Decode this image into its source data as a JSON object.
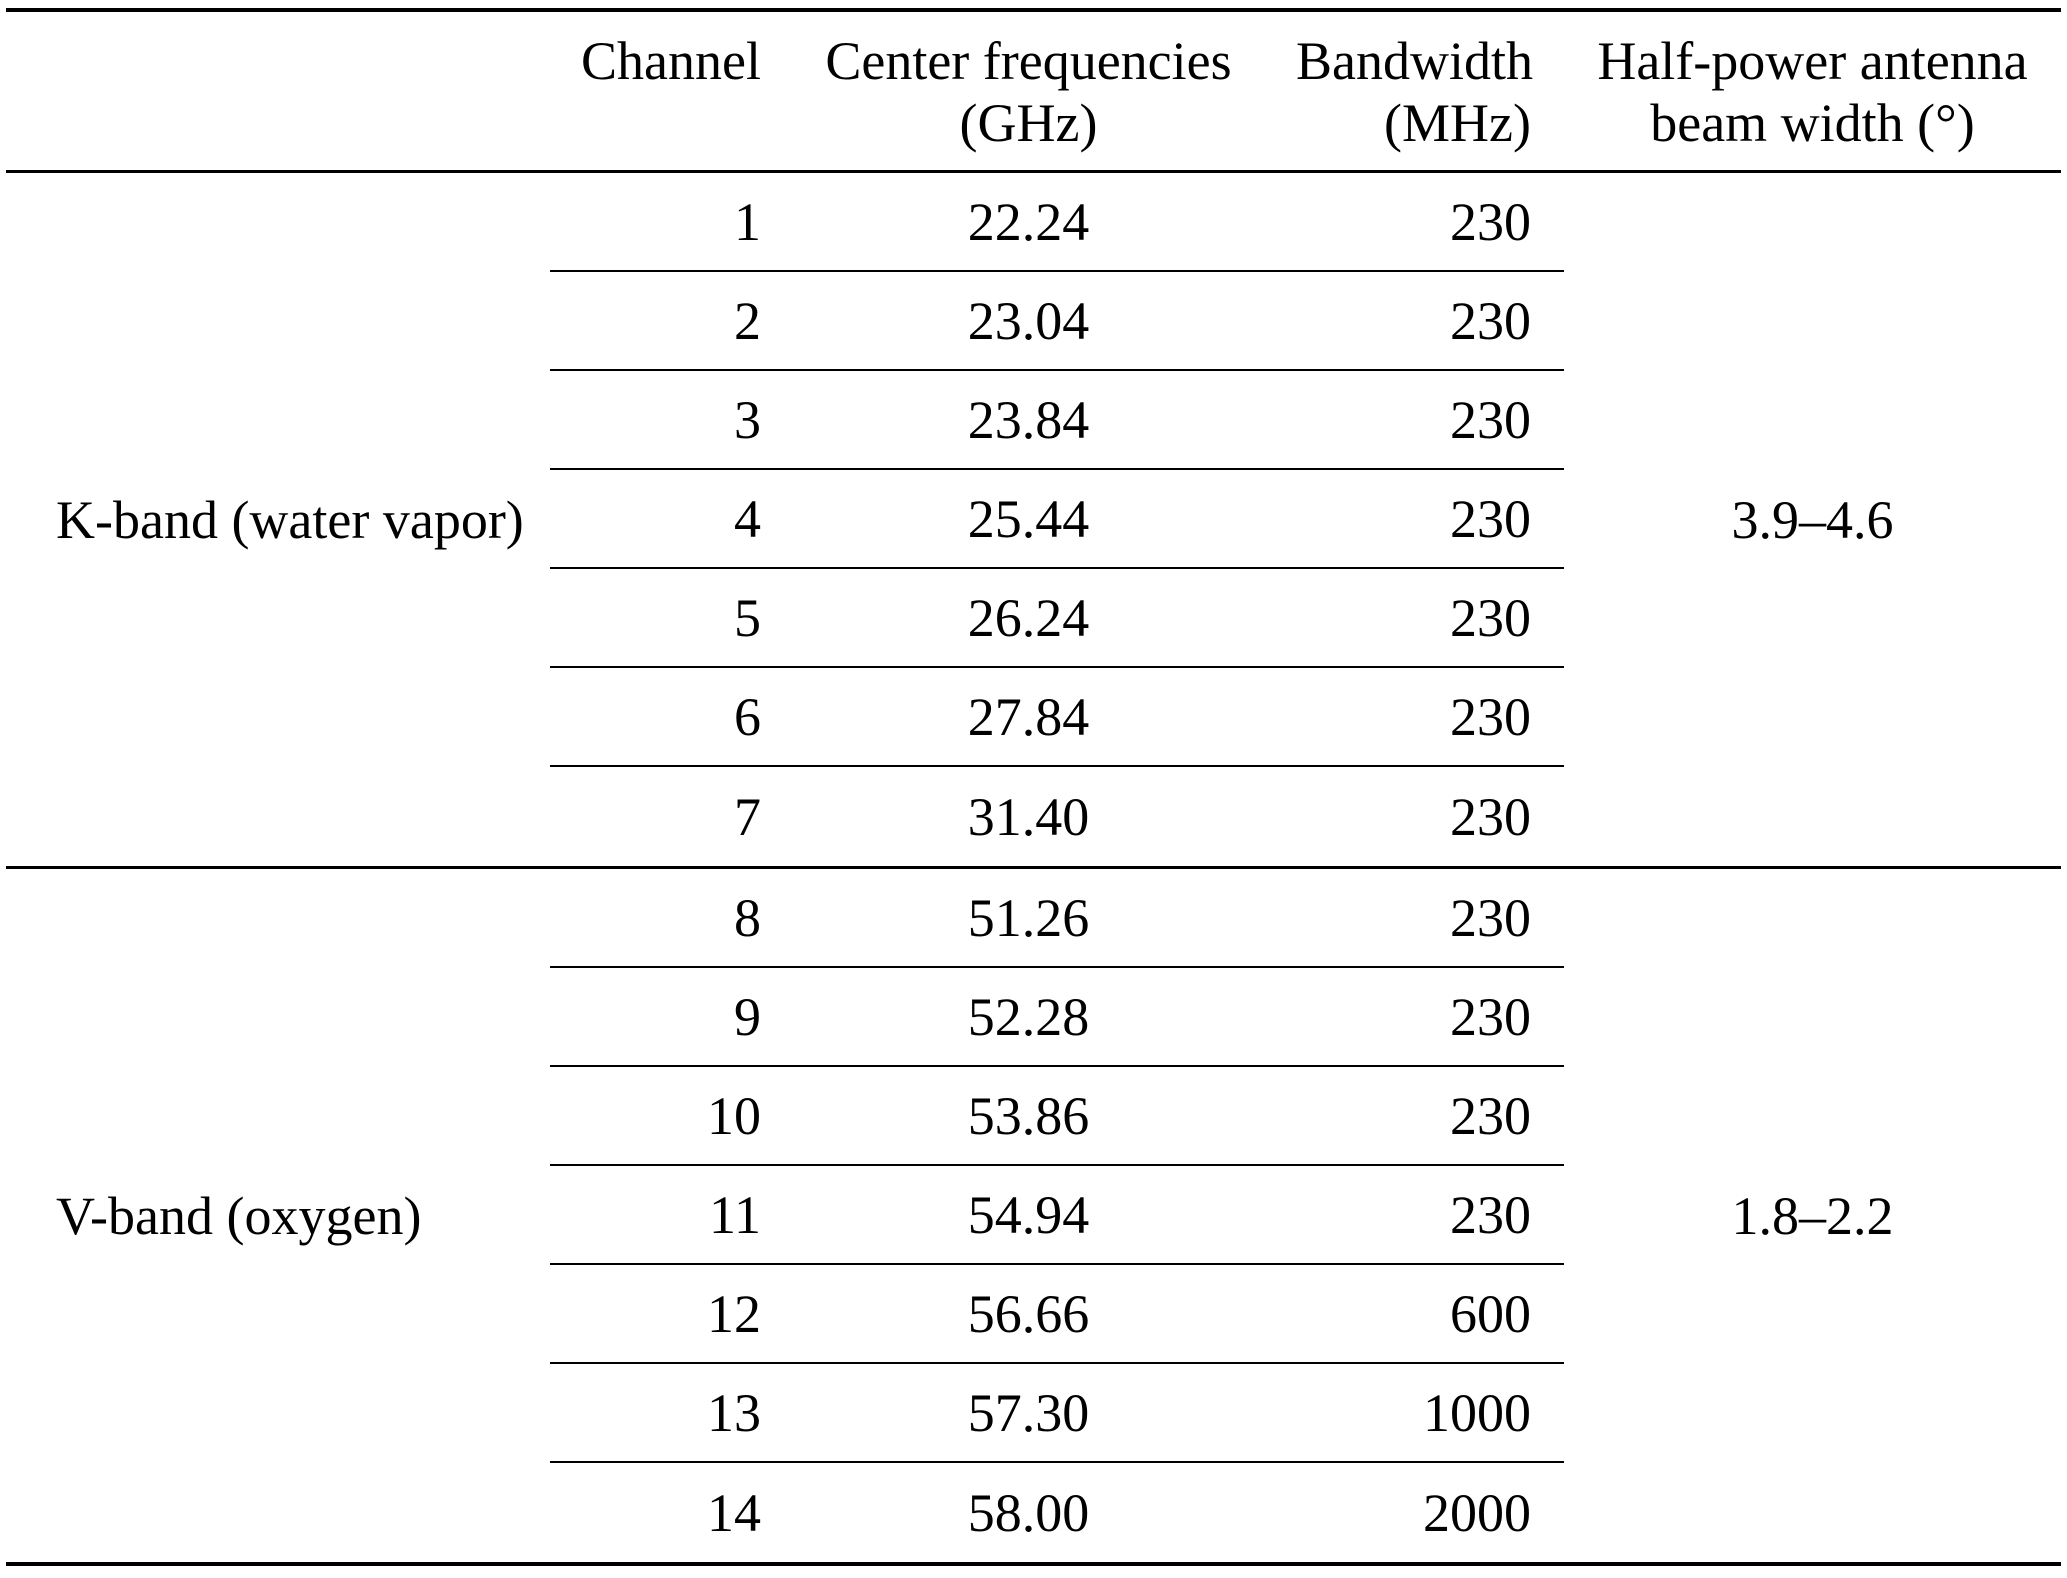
{
  "table": {
    "headers": {
      "channel": "Channel",
      "freq_line1": "Center frequencies",
      "freq_line2": "(GHz)",
      "bw_line1": "Bandwidth",
      "bw_line2": "(MHz)",
      "beam_line1": "Half-power antenna",
      "beam_line2": "beam width (°)"
    },
    "bands": [
      {
        "label": "K-band (water vapor)",
        "beam_width": "3.9–4.6",
        "rows": [
          {
            "channel": "1",
            "freq": "22.24",
            "bw": "230"
          },
          {
            "channel": "2",
            "freq": "23.04",
            "bw": "230"
          },
          {
            "channel": "3",
            "freq": "23.84",
            "bw": "230"
          },
          {
            "channel": "4",
            "freq": "25.44",
            "bw": "230"
          },
          {
            "channel": "5",
            "freq": "26.24",
            "bw": "230"
          },
          {
            "channel": "6",
            "freq": "27.84",
            "bw": "230"
          },
          {
            "channel": "7",
            "freq": "31.40",
            "bw": "230"
          }
        ]
      },
      {
        "label": "V-band (oxygen)",
        "beam_width": "1.8–2.2",
        "rows": [
          {
            "channel": "8",
            "freq": "51.26",
            "bw": "230"
          },
          {
            "channel": "9",
            "freq": "52.28",
            "bw": "230"
          },
          {
            "channel": "10",
            "freq": "53.86",
            "bw": "230"
          },
          {
            "channel": "11",
            "freq": "54.94",
            "bw": "230"
          },
          {
            "channel": "12",
            "freq": "56.66",
            "bw": "600"
          },
          {
            "channel": "13",
            "freq": "57.30",
            "bw": "1000"
          },
          {
            "channel": "14",
            "freq": "58.00",
            "bw": "2000"
          }
        ]
      }
    ]
  }
}
